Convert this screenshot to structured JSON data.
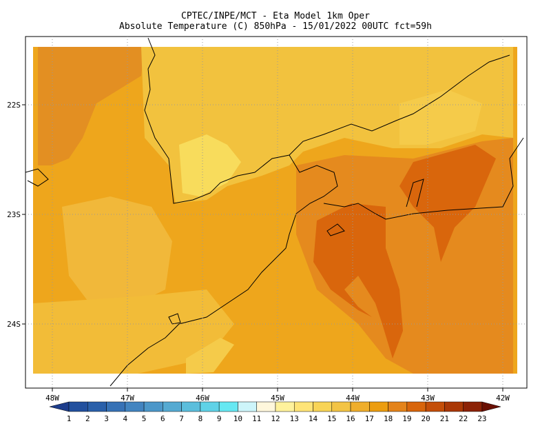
{
  "title": [
    "CPTEC/INPE/MCT -  Eta Model 1km Oper",
    "Absolute Temperature (C) 850hPa - 15/01/2022 00UTC fct=59h"
  ],
  "lon_labels": [
    "48W",
    "47W",
    "46W",
    "45W",
    "44W",
    "43W",
    "42W"
  ],
  "lat_labels": [
    "22S",
    "23S",
    "24S"
  ],
  "colorbar": {
    "labels": [
      1,
      2,
      3,
      4,
      5,
      6,
      7,
      8,
      9,
      10,
      11,
      12,
      13,
      14,
      15,
      16,
      17,
      18,
      19,
      20,
      21,
      22,
      23
    ],
    "colors": [
      "#1d3d8c",
      "#22509e",
      "#2a60aa",
      "#3772b6",
      "#4284c0",
      "#4c97c9",
      "#55aad2",
      "#5bbedc",
      "#5fd2e7",
      "#66e8f2",
      "#cdf5fa",
      "#fff7dc",
      "#fff29c",
      "#ffe477",
      "#f8d456",
      "#f3c445",
      "#efae2c",
      "#ec9d10",
      "#e4831a",
      "#d8650b",
      "#c44e08",
      "#aa3806",
      "#8c2206",
      "#6a0f02"
    ]
  }
}
